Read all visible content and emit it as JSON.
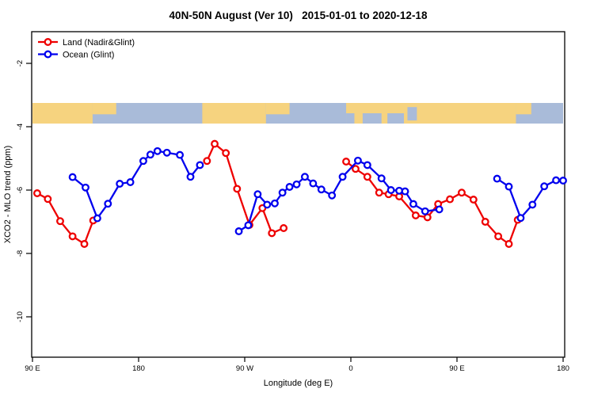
{
  "title": "40N-50N August (Ver 10)   2015-01-01 to 2020-12-18",
  "chart_data": {
    "type": "line",
    "title": "40N-50N August (Ver 10)   2015-01-01 to 2020-12-18",
    "xlabel": "Longitude (deg E)",
    "ylabel": "XCO2 - MLO trend (ppm)",
    "grid": false,
    "x_axis": {
      "range": [
        90,
        540
      ],
      "ticks": [
        90,
        180,
        270,
        360,
        450,
        540
      ],
      "tick_labels": [
        "90 E",
        "180",
        "90 W",
        "0",
        "90 E",
        "180"
      ],
      "note": "longitude in deg E, increasing eastward from 90E and wrapping through 180, 90W, 0, 90E to 180; values >180 are wrapped (e.g. 270=90W, 360=0, 450=90E)"
    },
    "y_axis": {
      "range": [
        -11.3,
        -1.0
      ],
      "ticks": [
        -2,
        -4,
        -6,
        -8,
        -10
      ],
      "tick_labels": [
        "-2",
        "-4",
        "-6",
        "-8",
        "-10"
      ]
    },
    "legend": {
      "position": "top-left",
      "entries": [
        {
          "label": "Land (Nadir&Glint)",
          "color": "#ee0000"
        },
        {
          "label": "Ocean (Glint)",
          "color": "#0000ee"
        }
      ]
    },
    "series": [
      {
        "name": "Land (Nadir&Glint)",
        "color": "#ee0000",
        "marker": "open-circle",
        "segments": [
          [
            [
              94,
              -6.1
            ],
            [
              103,
              -6.28
            ],
            [
              113.5,
              -6.98
            ],
            [
              124,
              -7.46
            ],
            [
              134,
              -7.7
            ],
            [
              141.5,
              -6.96
            ]
          ],
          [
            [
              238,
              -5.08
            ],
            [
              244.5,
              -4.54
            ],
            [
              254,
              -4.83
            ],
            [
              263.5,
              -5.96
            ],
            [
              274,
              -7.1
            ],
            [
              285,
              -6.57
            ],
            [
              293,
              -7.36
            ],
            [
              303,
              -7.2
            ]
          ],
          [
            [
              356,
              -5.1
            ],
            [
              364,
              -5.33
            ],
            [
              374,
              -5.58
            ],
            [
              384,
              -6.08
            ],
            [
              392,
              -6.13
            ],
            [
              401,
              -6.2
            ],
            [
              415,
              -6.8
            ],
            [
              425,
              -6.86
            ],
            [
              434,
              -6.44
            ],
            [
              444,
              -6.29
            ],
            [
              454,
              -6.08
            ],
            [
              464,
              -6.3
            ],
            [
              474,
              -7.0
            ],
            [
              485,
              -7.46
            ],
            [
              494,
              -7.7
            ],
            [
              501.5,
              -6.94
            ]
          ]
        ]
      },
      {
        "name": "Ocean (Glint)",
        "color": "#0000ee",
        "marker": "open-circle",
        "segments": [
          [
            [
              124,
              -5.59
            ],
            [
              135,
              -5.92
            ],
            [
              145,
              -6.89
            ],
            [
              154,
              -6.43
            ],
            [
              164,
              -5.8
            ],
            [
              173,
              -5.75
            ],
            [
              184,
              -5.08
            ],
            [
              190,
              -4.88
            ],
            [
              196,
              -4.77
            ],
            [
              204,
              -4.82
            ],
            [
              215,
              -4.89
            ],
            [
              224,
              -5.58
            ],
            [
              232,
              -5.21
            ]
          ],
          [
            [
              265,
              -7.3
            ],
            [
              273,
              -7.11
            ],
            [
              281,
              -6.13
            ],
            [
              289,
              -6.46
            ],
            [
              295.5,
              -6.42
            ],
            [
              302,
              -6.08
            ],
            [
              308,
              -5.9
            ],
            [
              314,
              -5.82
            ],
            [
              321,
              -5.58
            ],
            [
              328,
              -5.79
            ],
            [
              335,
              -5.98
            ],
            [
              344,
              -6.17
            ],
            [
              353,
              -5.58
            ],
            [
              366,
              -5.07
            ],
            [
              374,
              -5.21
            ],
            [
              386,
              -5.63
            ],
            [
              394,
              -6.0
            ],
            [
              401,
              -6.02
            ],
            [
              406,
              -6.04
            ],
            [
              413,
              -6.44
            ],
            [
              423,
              -6.67
            ],
            [
              435,
              -6.61
            ]
          ],
          [
            [
              484,
              -5.64
            ],
            [
              494,
              -5.89
            ],
            [
              504,
              -6.88
            ],
            [
              514,
              -6.46
            ],
            [
              524,
              -5.88
            ],
            [
              534,
              -5.69
            ],
            [
              540,
              -5.7
            ]
          ]
        ]
      }
    ],
    "map_strip": {
      "description": "world-map band of 40N-50N drawn across plot",
      "y_top": -3.25,
      "y_bottom": -3.9,
      "ocean_color": "#a9bbd9",
      "land_color": "#f6d37f",
      "land_segments": [
        {
          "from": 90,
          "to": 141,
          "part": "full"
        },
        {
          "from": 141,
          "to": 161,
          "part": "top"
        },
        {
          "from": 234,
          "to": 288,
          "part": "full"
        },
        {
          "from": 288,
          "to": 308,
          "part": "top"
        },
        {
          "from": 356,
          "to": 500,
          "part": "full"
        },
        {
          "from": 500,
          "to": 513,
          "part": "top"
        }
      ],
      "ocean_overlays": [
        {
          "from": 356,
          "to": 363,
          "part": "bottom"
        },
        {
          "from": 370,
          "to": 386,
          "part": "bottom"
        },
        {
          "from": 391,
          "to": 405,
          "part": "bottom"
        },
        {
          "from": 408,
          "to": 416,
          "part": "mid"
        }
      ]
    }
  }
}
